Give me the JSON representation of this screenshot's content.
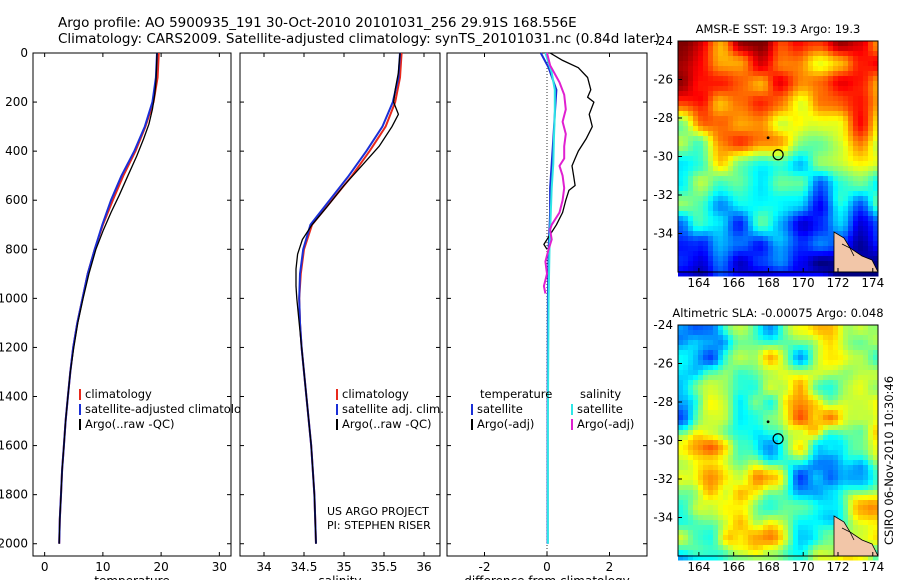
{
  "header": {
    "line1": "Argo profile: AO 5900935_191 30-Oct-2010 20101031_256 29.91S 168.556E",
    "line2": "Climatology: CARS2009. Satellite-adjusted climatology: synTS_20101031.nc (0.84d later)"
  },
  "side_label": "CSIRO 06-Nov-2010 10:30:46",
  "project_note": [
    "US ARGO PROJECT",
    "PI: STEPHEN RISER"
  ],
  "colors": {
    "climatology": "#e8291c",
    "satellite": "#1a2fd6",
    "argo": "#000000",
    "sal_satellite": "#2ee6e6",
    "sal_argo": "#e020d0"
  },
  "chart_data": [
    {
      "type": "line",
      "name": "temperature-panel",
      "xlabel": "temperature",
      "ylabel": "",
      "xlim": [
        -2,
        32
      ],
      "ylim": [
        2050,
        0
      ],
      "xticks": [
        0,
        10,
        20,
        30
      ],
      "yticks": [
        0,
        200,
        400,
        600,
        800,
        1000,
        1200,
        1400,
        1600,
        1800,
        2000
      ],
      "legend": [
        "climatology",
        "satellite-adjusted climatology",
        "Argo(..raw -QC)"
      ],
      "series": [
        {
          "name": "climatology",
          "color": "#e8291c",
          "width": 2,
          "points": [
            [
              19.6,
              0
            ],
            [
              19.4,
              100
            ],
            [
              18.7,
              200
            ],
            [
              17.3,
              300
            ],
            [
              15.6,
              400
            ],
            [
              13.5,
              500
            ],
            [
              11.7,
              600
            ],
            [
              10.0,
              700
            ],
            [
              8.6,
              800
            ],
            [
              7.4,
              900
            ],
            [
              6.5,
              1000
            ],
            [
              5.6,
              1100
            ],
            [
              4.9,
              1200
            ],
            [
              4.4,
              1300
            ],
            [
              4.0,
              1400
            ],
            [
              3.6,
              1500
            ],
            [
              3.3,
              1600
            ],
            [
              3.0,
              1700
            ],
            [
              2.8,
              1800
            ],
            [
              2.6,
              1900
            ],
            [
              2.5,
              2000
            ]
          ]
        },
        {
          "name": "satellite-adjusted climatology",
          "color": "#1a2fd6",
          "width": 2,
          "points": [
            [
              19.3,
              0
            ],
            [
              19.1,
              100
            ],
            [
              18.5,
              200
            ],
            [
              17.2,
              300
            ],
            [
              15.4,
              400
            ],
            [
              13.2,
              500
            ],
            [
              11.4,
              600
            ],
            [
              9.9,
              700
            ],
            [
              8.6,
              800
            ],
            [
              7.4,
              900
            ],
            [
              6.5,
              1000
            ],
            [
              5.6,
              1100
            ],
            [
              4.9,
              1200
            ],
            [
              4.4,
              1300
            ],
            [
              4.0,
              1400
            ],
            [
              3.6,
              1500
            ],
            [
              3.3,
              1600
            ],
            [
              3.0,
              1700
            ],
            [
              2.8,
              1800
            ],
            [
              2.6,
              1900
            ],
            [
              2.5,
              2000
            ]
          ]
        },
        {
          "name": "Argo(..raw -QC)",
          "color": "#000000",
          "width": 1.3,
          "points": [
            [
              19.3,
              0
            ],
            [
              19.2,
              60
            ],
            [
              19.1,
              120
            ],
            [
              18.9,
              170
            ],
            [
              18.5,
              230
            ],
            [
              17.9,
              290
            ],
            [
              17.0,
              350
            ],
            [
              15.8,
              420
            ],
            [
              14.3,
              500
            ],
            [
              12.8,
              580
            ],
            [
              11.4,
              650
            ],
            [
              10.1,
              720
            ],
            [
              8.8,
              800
            ],
            [
              7.6,
              900
            ],
            [
              6.6,
              1000
            ],
            [
              5.7,
              1100
            ],
            [
              5.0,
              1200
            ],
            [
              4.4,
              1300
            ],
            [
              4.0,
              1400
            ],
            [
              3.6,
              1500
            ],
            [
              3.3,
              1600
            ],
            [
              3.0,
              1700
            ],
            [
              2.8,
              1800
            ],
            [
              2.6,
              1900
            ],
            [
              2.5,
              2000
            ]
          ]
        }
      ]
    },
    {
      "type": "line",
      "name": "salinity-panel",
      "xlabel": "salinity",
      "ylabel": "",
      "xlim": [
        33.7,
        36.2
      ],
      "ylim": [
        2050,
        0
      ],
      "xticks": [
        34,
        34.5,
        35,
        35.5,
        36
      ],
      "yticks": [
        0,
        200,
        400,
        600,
        800,
        1000,
        1200,
        1400,
        1600,
        1800,
        2000
      ],
      "legend": [
        "climatology",
        "satellite adj. clim.",
        "Argo(..raw -QC)"
      ],
      "series": [
        {
          "name": "climatology",
          "color": "#e8291c",
          "width": 2,
          "points": [
            [
              35.72,
              0
            ],
            [
              35.7,
              100
            ],
            [
              35.64,
              200
            ],
            [
              35.52,
              300
            ],
            [
              35.32,
              400
            ],
            [
              35.1,
              500
            ],
            [
              34.85,
              600
            ],
            [
              34.6,
              700
            ],
            [
              34.5,
              800
            ],
            [
              34.46,
              900
            ],
            [
              34.44,
              1000
            ],
            [
              34.45,
              1100
            ],
            [
              34.47,
              1200
            ],
            [
              34.5,
              1300
            ],
            [
              34.53,
              1400
            ],
            [
              34.56,
              1500
            ],
            [
              34.59,
              1600
            ],
            [
              34.61,
              1700
            ],
            [
              34.63,
              1800
            ],
            [
              34.64,
              1900
            ],
            [
              34.65,
              2000
            ]
          ]
        },
        {
          "name": "satellite adj. clim.",
          "color": "#1a2fd6",
          "width": 2,
          "points": [
            [
              35.7,
              0
            ],
            [
              35.68,
              100
            ],
            [
              35.61,
              200
            ],
            [
              35.48,
              300
            ],
            [
              35.28,
              400
            ],
            [
              35.06,
              500
            ],
            [
              34.82,
              600
            ],
            [
              34.58,
              700
            ],
            [
              34.49,
              800
            ],
            [
              34.45,
              900
            ],
            [
              34.44,
              1000
            ],
            [
              34.45,
              1100
            ],
            [
              34.47,
              1200
            ],
            [
              34.5,
              1300
            ],
            [
              34.53,
              1400
            ],
            [
              34.56,
              1500
            ],
            [
              34.59,
              1600
            ],
            [
              34.61,
              1700
            ],
            [
              34.63,
              1800
            ],
            [
              34.64,
              1900
            ],
            [
              34.65,
              2000
            ]
          ]
        },
        {
          "name": "Argo(..raw -QC)",
          "color": "#000000",
          "width": 1.3,
          "points": [
            [
              35.7,
              0
            ],
            [
              35.68,
              80
            ],
            [
              35.64,
              150
            ],
            [
              35.62,
              200
            ],
            [
              35.68,
              250
            ],
            [
              35.6,
              300
            ],
            [
              35.44,
              380
            ],
            [
              35.22,
              460
            ],
            [
              35.0,
              540
            ],
            [
              34.78,
              630
            ],
            [
              34.6,
              700
            ],
            [
              34.48,
              760
            ],
            [
              34.42,
              820
            ],
            [
              34.4,
              880
            ],
            [
              34.4,
              950
            ],
            [
              34.41,
              1000
            ],
            [
              34.44,
              1100
            ],
            [
              34.47,
              1200
            ],
            [
              34.5,
              1300
            ],
            [
              34.53,
              1400
            ],
            [
              34.56,
              1500
            ],
            [
              34.59,
              1600
            ],
            [
              34.61,
              1700
            ],
            [
              34.63,
              1800
            ],
            [
              34.64,
              1900
            ],
            [
              34.65,
              2000
            ]
          ]
        }
      ]
    },
    {
      "type": "line",
      "name": "difference-panel",
      "xlabel": "difference from climatology",
      "ylabel": "",
      "xlim": [
        -3.2,
        3.2
      ],
      "ylim": [
        2050,
        0
      ],
      "xticks": [
        -2,
        0,
        2
      ],
      "yticks": [
        0,
        200,
        400,
        600,
        800,
        1000,
        1200,
        1400,
        1600,
        1800,
        2000
      ],
      "legend_groups": [
        {
          "title": "temperature",
          "items": [
            "satellite",
            "Argo(-adj)"
          ]
        },
        {
          "title": "salinity",
          "items": [
            "satellite",
            "Argo(-adj)"
          ]
        }
      ],
      "series": [
        {
          "name": "satellite",
          "group": "temperature",
          "color": "#1a2fd6",
          "width": 2,
          "points": [
            [
              -0.2,
              0
            ],
            [
              0.05,
              60
            ],
            [
              0.3,
              150
            ],
            [
              0.25,
              250
            ],
            [
              0.2,
              350
            ],
            [
              0.15,
              450
            ],
            [
              0.1,
              550
            ],
            [
              0.1,
              650
            ],
            [
              0.05,
              800
            ],
            [
              0.03,
              1000
            ],
            [
              0.02,
              1500
            ],
            [
              0.02,
              2000
            ]
          ]
        },
        {
          "name": "Argo(-adj)",
          "group": "temperature",
          "color": "#000000",
          "width": 1.3,
          "points": [
            [
              0.1,
              0
            ],
            [
              0.5,
              30
            ],
            [
              1.0,
              60
            ],
            [
              1.3,
              100
            ],
            [
              1.4,
              150
            ],
            [
              1.3,
              180
            ],
            [
              1.5,
              200
            ],
            [
              1.35,
              250
            ],
            [
              1.45,
              300
            ],
            [
              1.25,
              350
            ],
            [
              1.0,
              400
            ],
            [
              0.9,
              430
            ],
            [
              0.8,
              460
            ],
            [
              0.85,
              500
            ],
            [
              0.9,
              540
            ],
            [
              0.7,
              560
            ],
            [
              0.6,
              600
            ],
            [
              0.5,
              650
            ],
            [
              0.3,
              700
            ],
            [
              0.1,
              740
            ],
            [
              -0.1,
              780
            ],
            [
              0.0,
              800
            ]
          ]
        },
        {
          "name": "satellite",
          "group": "salinity",
          "color": "#2ee6e6",
          "width": 2,
          "points": [
            [
              -0.05,
              0
            ],
            [
              0.15,
              80
            ],
            [
              0.25,
              150
            ],
            [
              0.25,
              250
            ],
            [
              0.22,
              350
            ],
            [
              0.2,
              450
            ],
            [
              0.15,
              550
            ],
            [
              0.12,
              650
            ],
            [
              0.08,
              800
            ],
            [
              0.05,
              1000
            ],
            [
              0.03,
              1500
            ],
            [
              0.03,
              2000
            ]
          ]
        },
        {
          "name": "Argo(-adj)",
          "group": "salinity",
          "color": "#e020d0",
          "width": 2,
          "points": [
            [
              0.0,
              0
            ],
            [
              0.1,
              50
            ],
            [
              0.4,
              120
            ],
            [
              0.55,
              170
            ],
            [
              0.6,
              230
            ],
            [
              0.5,
              280
            ],
            [
              0.6,
              330
            ],
            [
              0.55,
              380
            ],
            [
              0.55,
              430
            ],
            [
              0.4,
              460
            ],
            [
              0.5,
              500
            ],
            [
              0.55,
              550
            ],
            [
              0.5,
              600
            ],
            [
              0.4,
              650
            ],
            [
              0.15,
              700
            ],
            [
              0.1,
              720
            ],
            [
              0.15,
              760
            ],
            [
              0.05,
              800
            ],
            [
              -0.05,
              850
            ],
            [
              0.0,
              900
            ],
            [
              -0.1,
              950
            ],
            [
              -0.05,
              980
            ]
          ]
        }
      ]
    },
    {
      "type": "heatmap",
      "name": "sst-map",
      "title": "AMSR-E SST: 19.3 Argo: 19.3",
      "xlim": [
        162.8,
        174.3
      ],
      "ylim": [
        -36,
        -24
      ],
      "xticks": [
        164,
        166,
        168,
        170,
        172,
        174
      ],
      "yticks": [
        -24,
        -26,
        -28,
        -30,
        -32,
        -34
      ],
      "profile_marker": {
        "lon": 168.556,
        "lat": -29.91
      }
    },
    {
      "type": "heatmap",
      "name": "sla-map",
      "title": "Altimetric SLA: -0.00075 Argo: 0.048",
      "xlim": [
        162.8,
        174.3
      ],
      "ylim": [
        -36,
        -24
      ],
      "xticks": [
        164,
        166,
        168,
        170,
        172,
        174
      ],
      "yticks": [
        -24,
        -26,
        -28,
        -30,
        -32,
        -34
      ],
      "profile_marker": {
        "lon": 168.556,
        "lat": -29.91
      }
    }
  ]
}
